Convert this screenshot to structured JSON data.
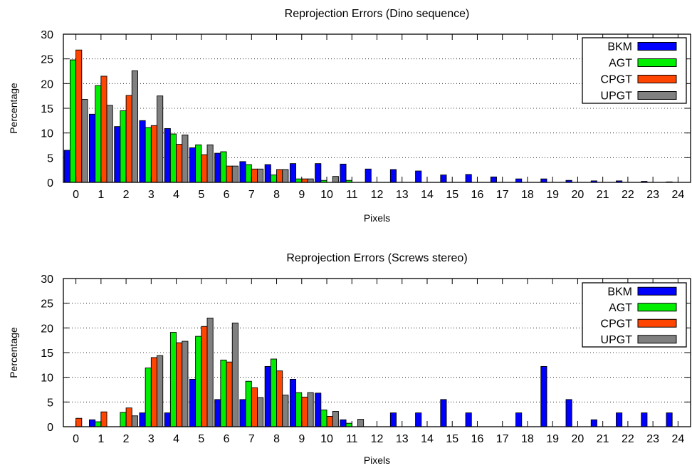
{
  "chart_data": [
    {
      "type": "bar",
      "title": "Reprojection Errors (Dino sequence)",
      "xlabel": "Pixels",
      "ylabel": "Percentage",
      "ylim": [
        0,
        30
      ],
      "yticks": [
        0,
        5,
        10,
        15,
        20,
        25,
        30
      ],
      "grid": "horizontal dotted",
      "legend": "top-right",
      "categories": [
        "0",
        "1",
        "2",
        "3",
        "4",
        "5",
        "6",
        "7",
        "8",
        "9",
        "10",
        "11",
        "12",
        "13",
        "14",
        "15",
        "16",
        "17",
        "18",
        "19",
        "20",
        "21",
        "22",
        "23",
        "24"
      ],
      "series": [
        {
          "name": "BKM",
          "color": "#0000ff",
          "values": [
            6.5,
            13.8,
            11.3,
            12.5,
            10.9,
            7.0,
            5.9,
            4.2,
            3.6,
            3.8,
            3.8,
            3.7,
            2.7,
            2.6,
            2.3,
            1.5,
            1.6,
            1.1,
            0.7,
            0.7,
            0.4,
            0.3,
            0.3,
            0.2,
            0.1
          ]
        },
        {
          "name": "AGT",
          "color": "#00ee00",
          "values": [
            24.8,
            19.6,
            14.5,
            11.1,
            9.8,
            7.6,
            6.2,
            3.6,
            1.5,
            0.7,
            0.4,
            0.4,
            0,
            0,
            0,
            0,
            0,
            0,
            0,
            0,
            0,
            0,
            0,
            0,
            0
          ]
        },
        {
          "name": "CPGT",
          "color": "#ff4500",
          "values": [
            26.8,
            21.5,
            17.6,
            11.5,
            7.7,
            5.6,
            3.3,
            2.7,
            2.6,
            0.7,
            0,
            0,
            0,
            0,
            0,
            0,
            0,
            0,
            0,
            0,
            0,
            0,
            0,
            0,
            0
          ]
        },
        {
          "name": "UPGT",
          "color": "#808080",
          "values": [
            16.8,
            15.6,
            22.6,
            17.5,
            9.6,
            7.6,
            3.3,
            2.7,
            2.6,
            0.7,
            1.2,
            0,
            0,
            0,
            0,
            0,
            0,
            0,
            0,
            0,
            0,
            0,
            0,
            0,
            0
          ]
        }
      ]
    },
    {
      "type": "bar",
      "title": "Reprojection Errors (Screws stereo)",
      "xlabel": "Pixels",
      "ylabel": "Percentage",
      "ylim": [
        0,
        30
      ],
      "yticks": [
        0,
        5,
        10,
        15,
        20,
        25,
        30
      ],
      "grid": "horizontal dotted",
      "legend": "top-right",
      "categories": [
        "0",
        "1",
        "2",
        "3",
        "4",
        "5",
        "6",
        "7",
        "8",
        "9",
        "10",
        "11",
        "12",
        "13",
        "14",
        "15",
        "16",
        "17",
        "18",
        "19",
        "20",
        "21",
        "22",
        "23",
        "24"
      ],
      "series": [
        {
          "name": "BKM",
          "color": "#0000ff",
          "values": [
            0,
            1.4,
            0,
            2.8,
            2.8,
            9.6,
            5.5,
            5.5,
            12.2,
            9.6,
            6.8,
            1.4,
            0,
            2.8,
            2.8,
            5.5,
            2.8,
            0,
            2.8,
            12.2,
            5.5,
            1.4,
            2.8,
            2.8,
            2.8
          ]
        },
        {
          "name": "AGT",
          "color": "#00ee00",
          "values": [
            0,
            1.0,
            2.9,
            11.9,
            19.1,
            18.3,
            13.5,
            9.2,
            13.7,
            6.9,
            3.4,
            0.7,
            0,
            0,
            0,
            0,
            0,
            0,
            0,
            0,
            0,
            0,
            0,
            0,
            0
          ]
        },
        {
          "name": "CPGT",
          "color": "#ff4500",
          "values": [
            1.7,
            3.0,
            3.8,
            14.0,
            17.0,
            20.3,
            13.1,
            7.9,
            11.3,
            6.0,
            2.1,
            0,
            0,
            0,
            0,
            0,
            0,
            0,
            0,
            0,
            0,
            0,
            0,
            0,
            0
          ]
        },
        {
          "name": "UPGT",
          "color": "#808080",
          "values": [
            0,
            0,
            2.2,
            14.4,
            17.3,
            22.0,
            21.0,
            5.9,
            6.4,
            6.9,
            3.1,
            1.5,
            0,
            0,
            0,
            0,
            0,
            0,
            0,
            0,
            0,
            0,
            0,
            0,
            0
          ]
        }
      ]
    }
  ]
}
